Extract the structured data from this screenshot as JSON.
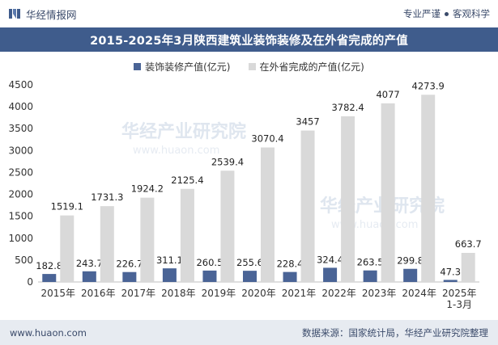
{
  "header": {
    "brand_name": "华经情报网",
    "tag1": "专业严谨",
    "tag2": "客观科学",
    "logo_icon": "brand-logo-icon"
  },
  "colors": {
    "title_band": "#3f5c8c",
    "series1": "#4a6496",
    "series2": "#d9d9d9",
    "footer_bg": "#e7ebf1"
  },
  "watermark": {
    "text_cn": "华经产业研究院",
    "text_url": "www.huaon.com"
  },
  "footer": {
    "website": "www.huaon.com",
    "source": "数据来源：国家统计局，华经产业研究院整理"
  },
  "chart_data": {
    "type": "bar",
    "title": "2015-2025年3月陕西建筑业装饰装修及在外省完成的产值",
    "categories": [
      "2015年",
      "2016年",
      "2017年",
      "2018年",
      "2019年",
      "2020年",
      "2021年",
      "2022年",
      "2023年",
      "2024年",
      "2025年\n1-3月"
    ],
    "series": [
      {
        "name": "装饰装修产值(亿元)",
        "values": [
          182.8,
          243.7,
          226.7,
          311.1,
          260.5,
          255.6,
          228.4,
          324.4,
          263.5,
          299.8,
          47.3
        ]
      },
      {
        "name": "在外省完成的产值(亿元)",
        "values": [
          1519.1,
          1731.3,
          1924.2,
          2125.4,
          2539.4,
          3070.4,
          3457,
          3782.4,
          4077,
          4273.9,
          663.7
        ]
      }
    ],
    "ylim": [
      0,
      4500
    ],
    "yticks": [
      0,
      500,
      1000,
      1500,
      2000,
      2500,
      3000,
      3500,
      4000,
      4500
    ],
    "grid": false,
    "legend_position": "top-center"
  }
}
